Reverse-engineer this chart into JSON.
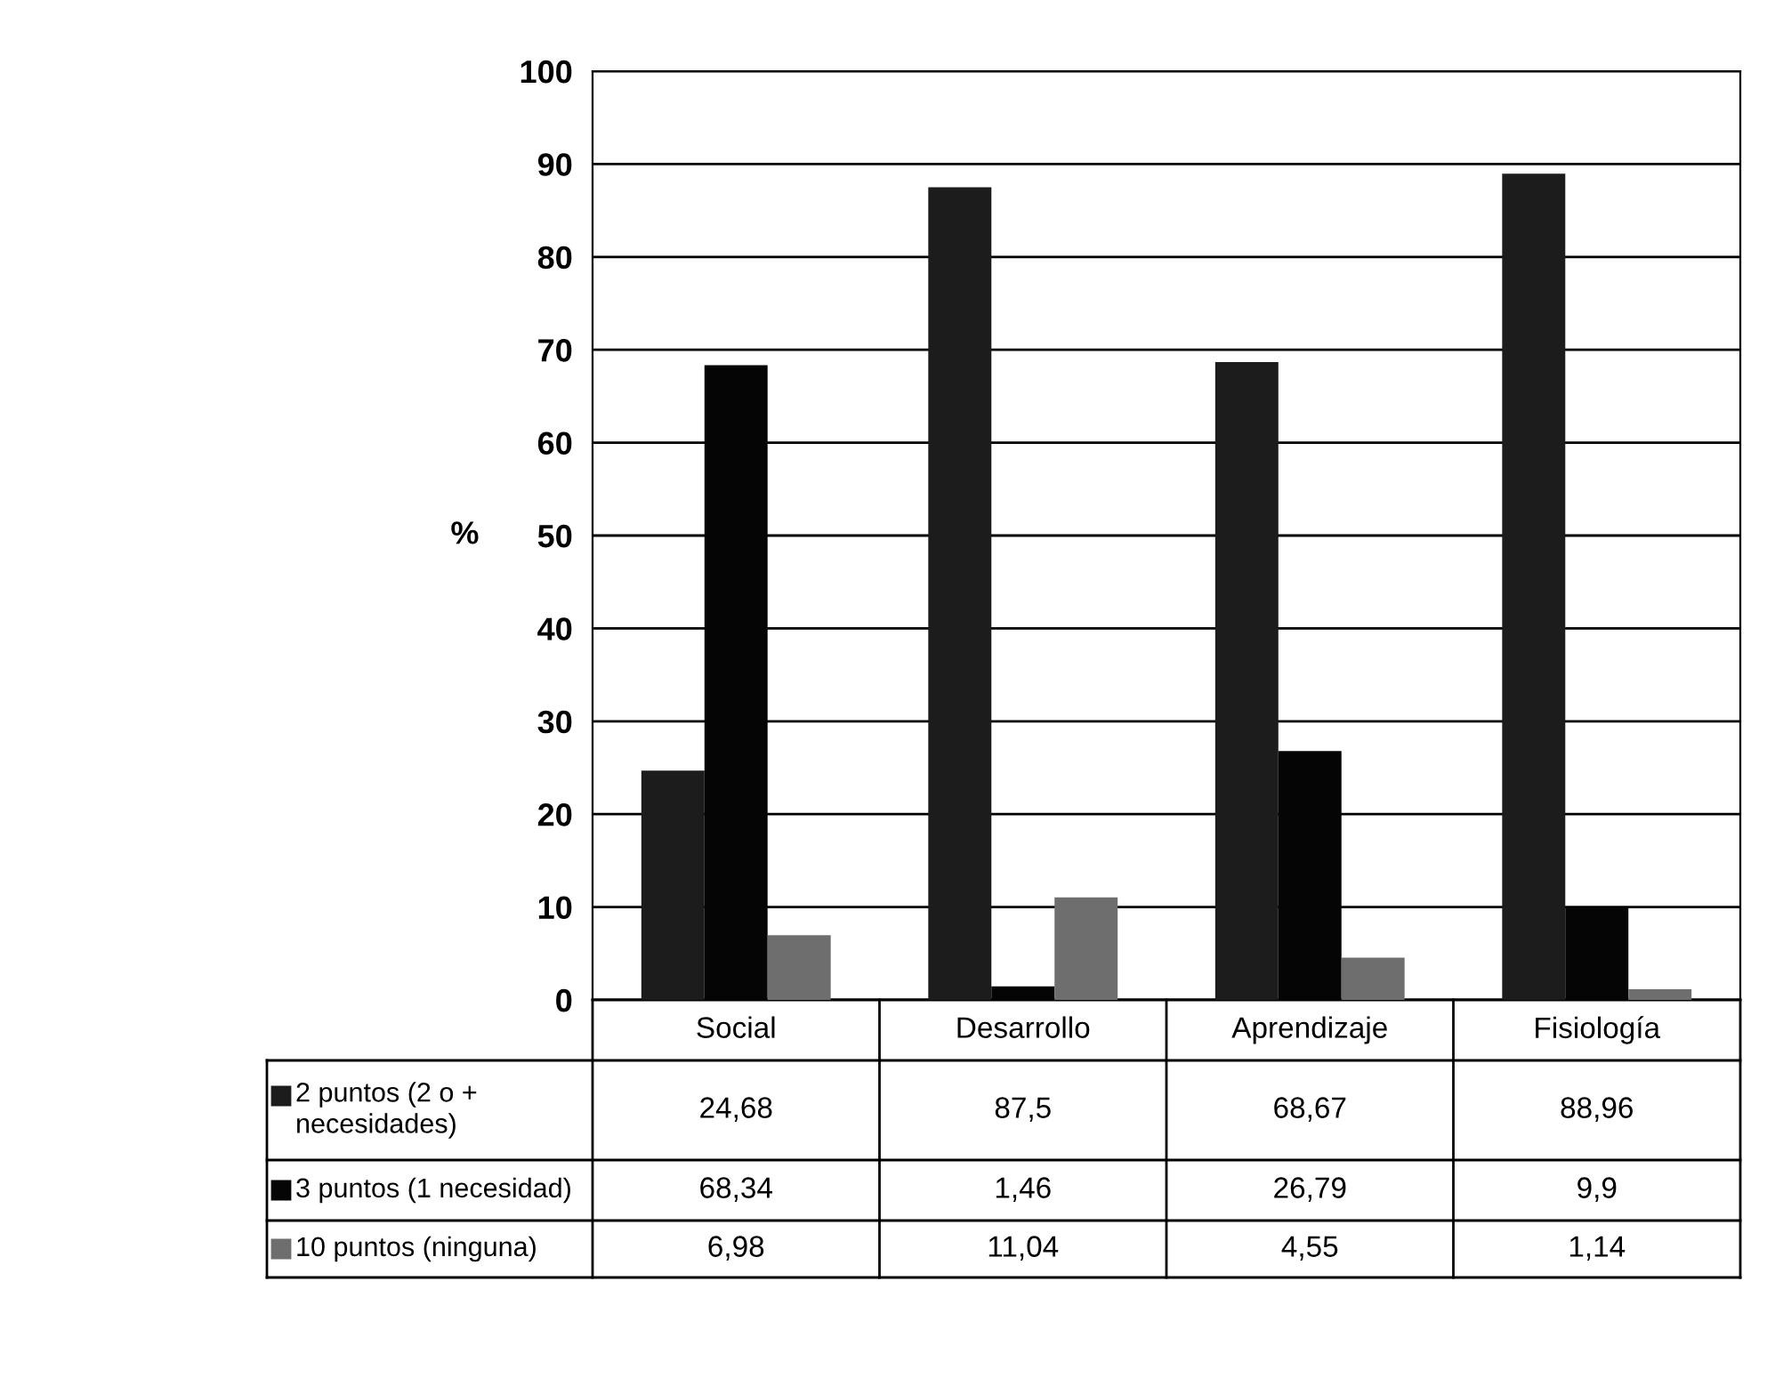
{
  "chart_data": {
    "type": "bar",
    "ylabel": "%",
    "categories": [
      "Social",
      "Desarrollo",
      "Aprendizaje",
      "Fisiología"
    ],
    "series": [
      {
        "name": "2 puntos (2 o +\nnecesidades)",
        "color": "#1c1c1c",
        "values": [
          24.68,
          87.5,
          68.67,
          88.96
        ],
        "value_labels": [
          "24,68",
          "87,5",
          "68,67",
          "88,96"
        ]
      },
      {
        "name": "3 puntos (1 necesidad)",
        "color": "#050505",
        "values": [
          68.34,
          1.46,
          26.79,
          9.9
        ],
        "value_labels": [
          "68,34",
          "1,46",
          "26,79",
          "9,9"
        ]
      },
      {
        "name": "10 puntos (ninguna)",
        "color": "#6e6e6e",
        "values": [
          6.98,
          11.04,
          4.55,
          1.14
        ],
        "value_labels": [
          "6,98",
          "11,04",
          "4,55",
          "1,14"
        ]
      }
    ],
    "ylim": [
      0,
      100
    ],
    "yticks": [
      0,
      10,
      20,
      30,
      40,
      50,
      60,
      70,
      80,
      90,
      100
    ],
    "grid": "y",
    "legend": "bottom"
  }
}
